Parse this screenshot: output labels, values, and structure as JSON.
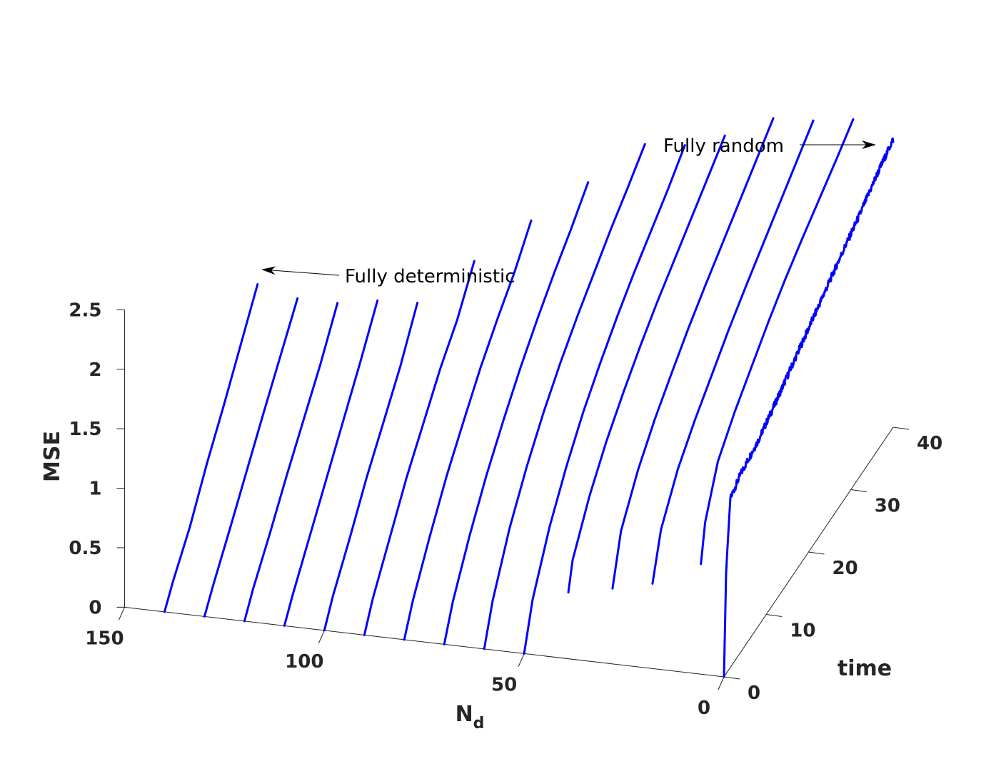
{
  "chart_data": {
    "type": "line",
    "projection": "3d",
    "series_color": "#0000ff",
    "axes": {
      "x": {
        "label": "N",
        "label_subscript": "d",
        "ticks": [
          0,
          50,
          100,
          150
        ],
        "range": [
          0,
          150
        ]
      },
      "y": {
        "label": "time",
        "ticks": [
          0,
          10,
          20,
          30,
          40
        ],
        "range": [
          0,
          40
        ]
      },
      "z": {
        "label": "MSE",
        "ticks": [
          0,
          0.5,
          1,
          1.5,
          2,
          2.5
        ],
        "range": [
          0,
          2.5
        ]
      }
    },
    "annotations": [
      {
        "text": "Fully random",
        "arrow": "right"
      },
      {
        "text": "Fully deterministic",
        "arrow": "left"
      }
    ],
    "series": [
      {
        "nd": 0,
        "time": [
          0,
          0.5,
          1.5,
          4,
          8,
          12,
          16,
          20,
          24,
          28,
          32,
          36,
          40
        ],
        "mse": [
          0,
          0.85,
          1.42,
          1.5,
          1.56,
          1.66,
          1.77,
          1.88,
          1.99,
          2.1,
          2.2,
          2.32,
          2.42
        ],
        "noisy": true
      },
      {
        "nd": 10,
        "time": [
          4,
          5,
          8,
          12,
          16,
          20,
          24,
          28,
          32,
          36,
          40
        ],
        "mse": [
          0.7,
          1.0,
          1.35,
          1.56,
          1.73,
          1.9,
          2.05,
          2.18,
          2.3,
          2.42,
          2.55
        ]
      },
      {
        "nd": 20,
        "time": [
          2,
          4,
          8,
          12,
          16,
          20,
          24,
          28,
          32,
          36,
          40
        ],
        "mse": [
          0.6,
          0.95,
          1.25,
          1.45,
          1.62,
          1.79,
          1.94,
          2.08,
          2.22,
          2.36,
          2.5
        ]
      },
      {
        "nd": 30,
        "time": [
          2,
          4,
          8,
          12,
          16,
          20,
          24,
          28,
          32,
          36,
          40
        ],
        "mse": [
          0.52,
          0.9,
          1.2,
          1.42,
          1.6,
          1.77,
          1.92,
          2.06,
          2.2,
          2.34,
          2.48
        ]
      },
      {
        "nd": 40,
        "time": [
          1,
          2,
          6,
          10,
          14,
          18,
          22,
          26,
          30,
          34,
          38
        ],
        "mse": [
          0.5,
          0.72,
          1.05,
          1.3,
          1.5,
          1.68,
          1.84,
          1.98,
          2.12,
          2.26,
          2.4
        ]
      },
      {
        "nd": 50,
        "time": [
          0,
          2,
          6,
          10,
          14,
          18,
          22,
          26,
          30,
          34,
          38
        ],
        "mse": [
          0,
          0.35,
          0.75,
          1.05,
          1.3,
          1.5,
          1.68,
          1.84,
          1.98,
          2.12,
          2.28
        ]
      },
      {
        "nd": 60,
        "time": [
          0,
          2,
          6,
          10,
          14,
          18,
          22,
          26,
          30,
          34,
          38
        ],
        "mse": [
          0,
          0.3,
          0.7,
          1.0,
          1.25,
          1.46,
          1.64,
          1.8,
          1.96,
          2.1,
          2.25
        ]
      },
      {
        "nd": 70,
        "time": [
          0,
          2,
          6,
          10,
          14,
          18,
          22,
          26,
          30,
          34
        ],
        "mse": [
          0,
          0.25,
          0.6,
          0.9,
          1.15,
          1.38,
          1.58,
          1.76,
          1.92,
          2.1
        ]
      },
      {
        "nd": 80,
        "time": [
          0,
          2,
          6,
          10,
          14,
          18,
          22,
          26,
          30
        ],
        "mse": [
          0,
          0.22,
          0.55,
          0.85,
          1.1,
          1.34,
          1.54,
          1.72,
          1.95
        ]
      },
      {
        "nd": 90,
        "time": [
          0,
          2,
          6,
          10,
          14,
          18,
          22,
          26
        ],
        "mse": [
          0,
          0.2,
          0.5,
          0.8,
          1.05,
          1.3,
          1.5,
          1.78
        ]
      },
      {
        "nd": 100,
        "time": [
          0,
          2,
          6,
          10,
          14,
          18,
          22
        ],
        "mse": [
          0,
          0.18,
          0.46,
          0.76,
          1.02,
          1.28,
          1.6
        ]
      },
      {
        "nd": 110,
        "time": [
          0,
          2,
          6,
          10,
          14,
          18,
          22
        ],
        "mse": [
          0,
          0.16,
          0.44,
          0.72,
          1.0,
          1.28,
          1.58
        ]
      },
      {
        "nd": 120,
        "time": [
          0,
          2,
          6,
          10,
          14,
          18,
          22
        ],
        "mse": [
          0,
          0.16,
          0.42,
          0.7,
          0.96,
          1.22,
          1.52
        ]
      },
      {
        "nd": 130,
        "time": [
          0,
          2,
          6,
          10,
          14,
          18,
          22
        ],
        "mse": [
          0,
          0.15,
          0.42,
          0.7,
          0.98,
          1.25,
          1.52
        ]
      },
      {
        "nd": 140,
        "time": [
          0,
          2,
          6,
          10,
          14,
          18,
          22
        ],
        "mse": [
          0,
          0.15,
          0.4,
          0.72,
          1.0,
          1.3,
          1.6
        ]
      }
    ]
  }
}
